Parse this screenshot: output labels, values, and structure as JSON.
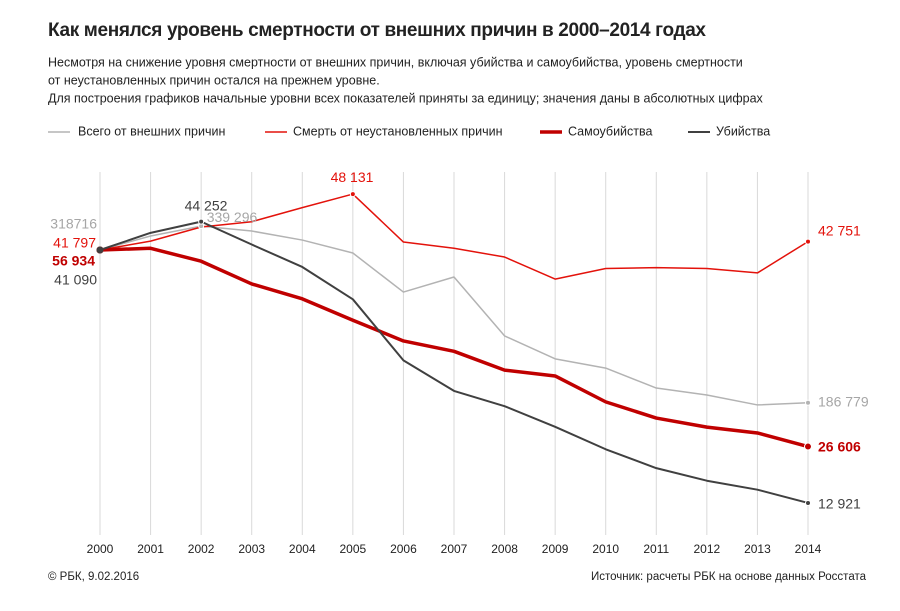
{
  "chart_data": {
    "type": "line",
    "title": "Как менялся уровень смертности от внешних причин в 2000–2014 годах",
    "subtitle": [
      "Несмотря на снижение  уровня смертности от внешних причин, включая убийства и самоубийства, уровень смертности",
      "от неустановленных причин остался на прежнем уровне.",
      "Для построения графиков начальные уровни всех показателей приняты за единицу; значения даны в абсолютных цифрах"
    ],
    "categories": [
      "2000",
      "2001",
      "2002",
      "2003",
      "2004",
      "2005",
      "2006",
      "2007",
      "2008",
      "2009",
      "2010",
      "2011",
      "2012",
      "2013",
      "2014"
    ],
    "grid": true,
    "series": [
      {
        "name": "Всего от внешних причин",
        "color": "#b3b3b3",
        "width": 1.5,
        "values": [
          318716,
          330800,
          339296,
          335100,
          327300,
          316100,
          282400,
          295400,
          244500,
          224700,
          216700,
          199500,
          193500,
          184900,
          186779
        ],
        "value_labels": [
          "318716",
          null,
          "339 296",
          null,
          null,
          null,
          null,
          null,
          null,
          null,
          null,
          null,
          null,
          null,
          "186 779"
        ]
      },
      {
        "name": "Смерть от неустановленных причин",
        "color": "#e3120b",
        "width": 1.5,
        "values": [
          41797,
          42800,
          44400,
          45000,
          46600,
          48131,
          42700,
          42000,
          41000,
          38500,
          39700,
          39800,
          39700,
          39200,
          42751
        ],
        "value_labels": [
          "41 797",
          null,
          null,
          null,
          null,
          "48 131",
          null,
          null,
          null,
          null,
          null,
          null,
          null,
          null,
          "42 751"
        ]
      },
      {
        "name": "Самоубийства",
        "color": "#c00000",
        "width": 3.5,
        "values": [
          56934,
          57200,
          55200,
          51700,
          49400,
          46100,
          42900,
          41300,
          38400,
          37500,
          33500,
          31000,
          29600,
          28700,
          26606
        ],
        "value_labels": [
          "56 934",
          null,
          null,
          null,
          null,
          null,
          null,
          null,
          null,
          null,
          null,
          null,
          null,
          null,
          "26 606"
        ]
      },
      {
        "name": "Убийства",
        "color": "#404040",
        "width": 2,
        "values": [
          41090,
          43000,
          44252,
          41700,
          39200,
          35600,
          28800,
          25400,
          23700,
          21400,
          18900,
          16800,
          15400,
          14400,
          12921
        ],
        "value_labels": [
          "41 090",
          null,
          "44 252",
          null,
          null,
          null,
          null,
          null,
          null,
          null,
          null,
          null,
          null,
          null,
          "12 921"
        ]
      }
    ],
    "copyright": "© РБК, 9.02.2016",
    "source": "Источник: расчеты РБК на основе данных Росстата"
  }
}
